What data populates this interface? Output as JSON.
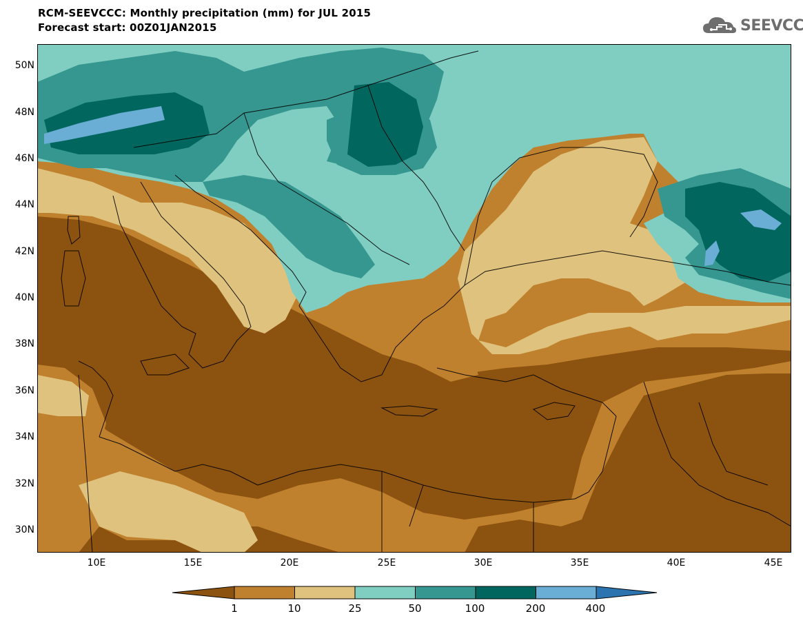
{
  "header": {
    "title_line1": "RCM-SEEVCCC: Monthly precipitation (mm) for JUL 2015",
    "title_line2": "Forecast start: 00Z01JAN2015",
    "logo_text": "SEEVCCC",
    "logo_icon": "cloud-icon"
  },
  "axes": {
    "lat_labels": [
      "50N",
      "48N",
      "46N",
      "44N",
      "42N",
      "40N",
      "38N",
      "36N",
      "34N",
      "32N",
      "30N"
    ],
    "lon_labels": [
      "10E",
      "15E",
      "20E",
      "25E",
      "30E",
      "35E",
      "40E",
      "45E"
    ],
    "lat_range": [
      29,
      51
    ],
    "lon_range": [
      7,
      46
    ]
  },
  "legend": {
    "levels": [
      "1",
      "10",
      "25",
      "50",
      "100",
      "200",
      "400"
    ],
    "colors": [
      "#8c520f",
      "#bf812d",
      "#dfc27d",
      "#80cdc1",
      "#35978f",
      "#01665e",
      "#6aaed6",
      "#2c74b0"
    ]
  },
  "palette": {
    "lt1": "#8c520f",
    "c1_10": "#bf812d",
    "c10_25": "#dfc27d",
    "c25_50": "#80cdc1",
    "c50_100": "#35978f",
    "c100_200": "#01665e",
    "c200_400": "#6aaed6",
    "border": "#000000"
  }
}
